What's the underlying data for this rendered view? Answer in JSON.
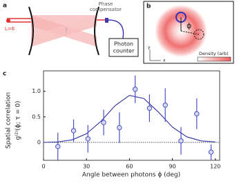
{
  "panel_a": {
    "label": "a",
    "l_label": "L=6",
    "compensator_label": [
      "Phase",
      "compensator"
    ],
    "counter_label": [
      "Photon",
      "counter"
    ]
  },
  "panel_b": {
    "label": "b",
    "phi_label": "ϕ",
    "y_axis": "y",
    "x_axis": "x",
    "legend_label": "Density (arb)"
  },
  "chart_data": {
    "type": "scatter",
    "panel_label": "c",
    "xlabel": "Angle between photons ϕ (deg)",
    "ylabel": [
      "Spatial correlation",
      "g⁽²⁾(ϕ; τ = 0)"
    ],
    "x": [
      10,
      21,
      31,
      42,
      53,
      64,
      74,
      85,
      96,
      107,
      117
    ],
    "values": [
      -0.08,
      0.23,
      0.07,
      0.39,
      0.29,
      1.04,
      0.67,
      0.73,
      0.03,
      0.56,
      -0.19
    ],
    "errors": [
      0.27,
      0.22,
      0.27,
      0.25,
      0.3,
      0.27,
      0.27,
      0.33,
      0.27,
      0.3,
      0.15
    ],
    "color": "#4a4fc4",
    "fit_x": [
      0,
      10,
      20,
      30,
      40,
      50,
      60,
      70,
      80,
      90,
      100,
      110,
      120
    ],
    "fit_values": [
      0,
      0.01,
      0.05,
      0.17,
      0.41,
      0.72,
      0.92,
      0.86,
      0.6,
      0.3,
      0.11,
      0.03,
      0.01
    ],
    "fit_color": "#2b2f9e",
    "xlim": [
      0,
      123
    ],
    "xticks": [
      0,
      30,
      60,
      90,
      120
    ],
    "ylim": [
      -0.35,
      1.4
    ],
    "yticks": [
      0,
      0.5,
      {
        "value": 1,
        "label": "1.0"
      }
    ]
  }
}
